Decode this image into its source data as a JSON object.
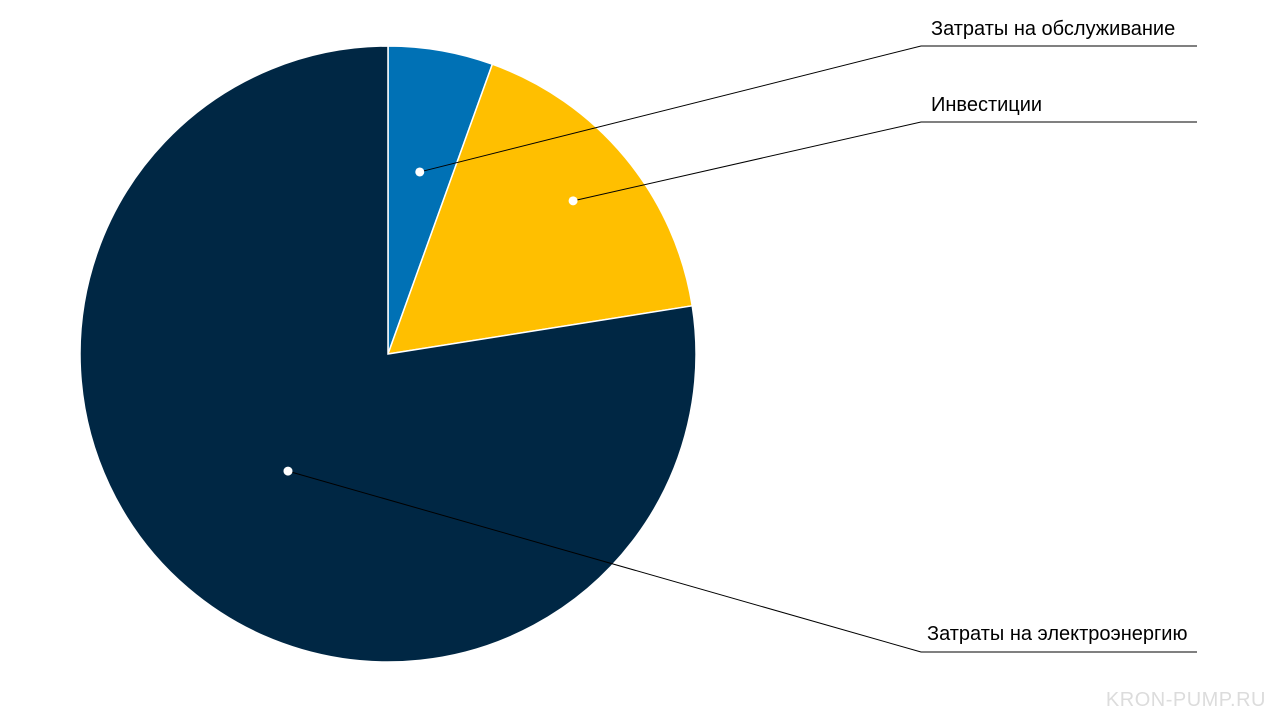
{
  "chart_data": {
    "type": "pie",
    "title": "",
    "slices": [
      {
        "name": "Затраты на обслуживание",
        "value": 5.5,
        "color": "#0071b5"
      },
      {
        "name": "Инвестиции",
        "value": 17,
        "color": "#ffbf00"
      },
      {
        "name": "Затраты на электроэнергию",
        "value": 77.5,
        "color": "#002744"
      }
    ],
    "start_angle": "12 o'clock",
    "direction": "clockwise",
    "legend": "callout labels on the right"
  },
  "watermark": "KRON-PUMP.RU"
}
